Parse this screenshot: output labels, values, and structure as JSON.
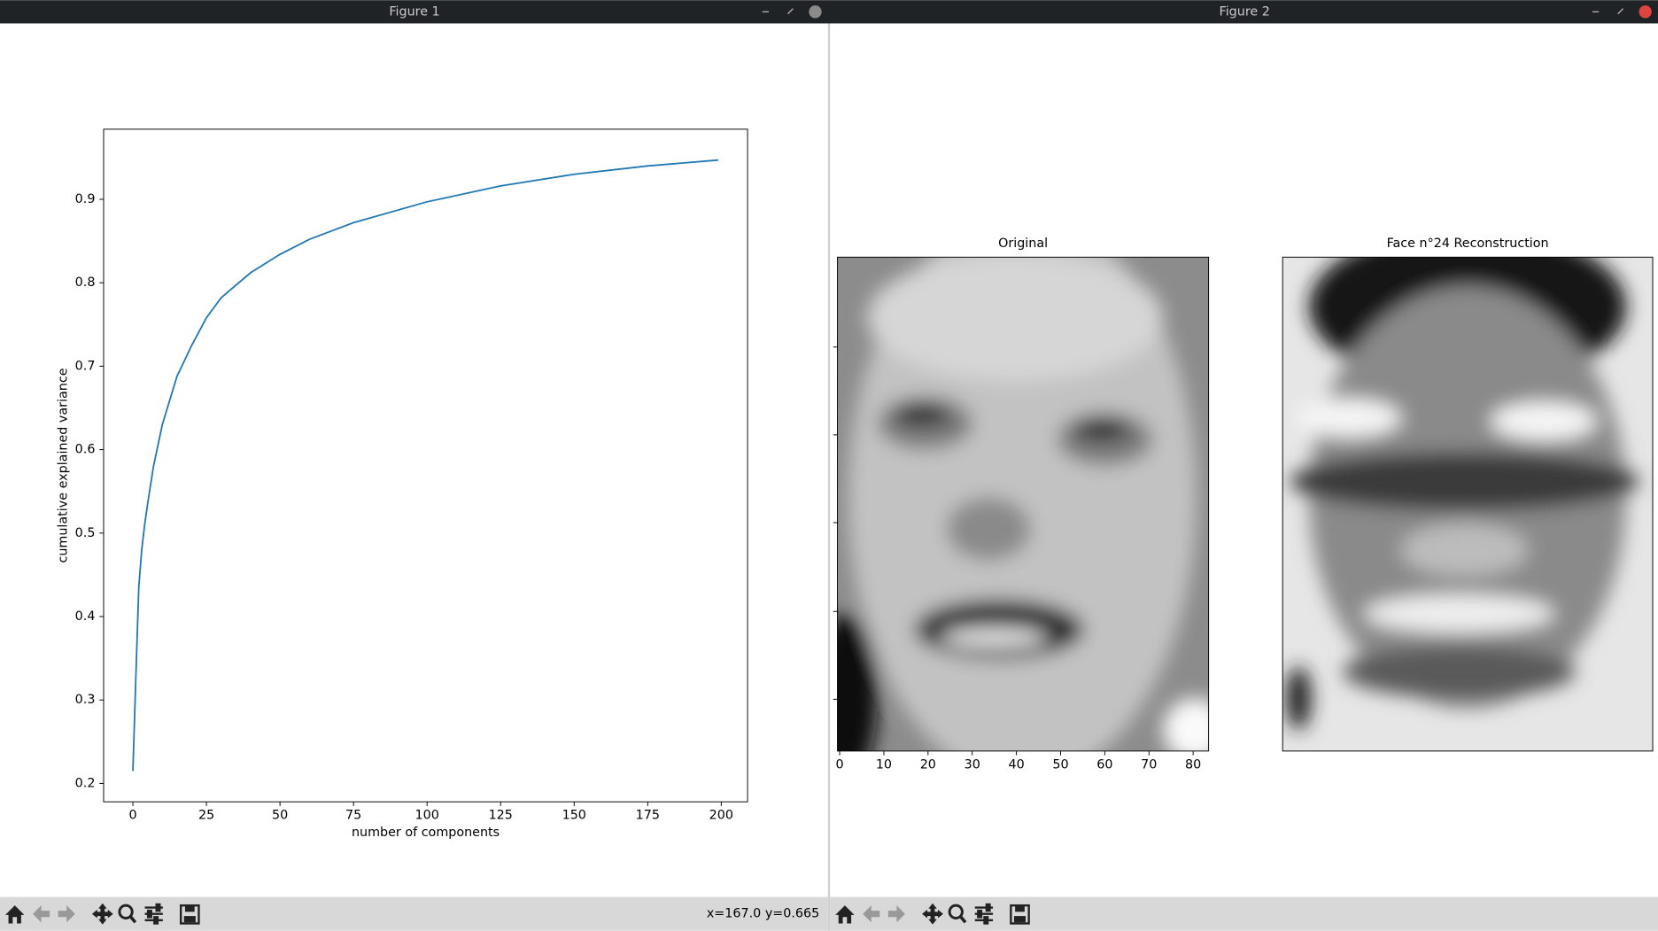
{
  "windows": [
    {
      "title": "Figure 1",
      "status": "x=167.0 y=0.665"
    },
    {
      "title": "Figure 2"
    }
  ],
  "chart_data": [
    {
      "type": "line",
      "x": [
        0,
        1,
        2,
        3,
        4,
        5,
        7,
        10,
        15,
        20,
        25,
        30,
        40,
        50,
        60,
        75,
        100,
        125,
        150,
        175,
        199
      ],
      "values": [
        0.215,
        0.327,
        0.435,
        0.48,
        0.51,
        0.535,
        0.58,
        0.63,
        0.688,
        0.725,
        0.758,
        0.782,
        0.812,
        0.834,
        0.852,
        0.872,
        0.897,
        0.916,
        0.93,
        0.94,
        0.947
      ],
      "color": "#1f77b4",
      "x_label": "number of components",
      "y_label": "cumulative explained variance",
      "xlim": [
        -9.95,
        208.95
      ],
      "ylim": [
        0.178,
        0.984
      ],
      "xticks": [
        0,
        25,
        50,
        75,
        100,
        125,
        150,
        175,
        200
      ],
      "yticks": [
        0.2,
        0.3,
        0.4,
        0.5,
        0.6,
        0.7,
        0.8,
        0.9
      ]
    },
    {
      "type": "image",
      "title": "Original",
      "xlim": [
        -0.5,
        83.5
      ],
      "xticks": [
        0,
        10,
        20,
        30,
        40,
        50,
        60,
        70,
        80
      ]
    },
    {
      "type": "image",
      "title": "Face n°24 Reconstruction"
    }
  ]
}
